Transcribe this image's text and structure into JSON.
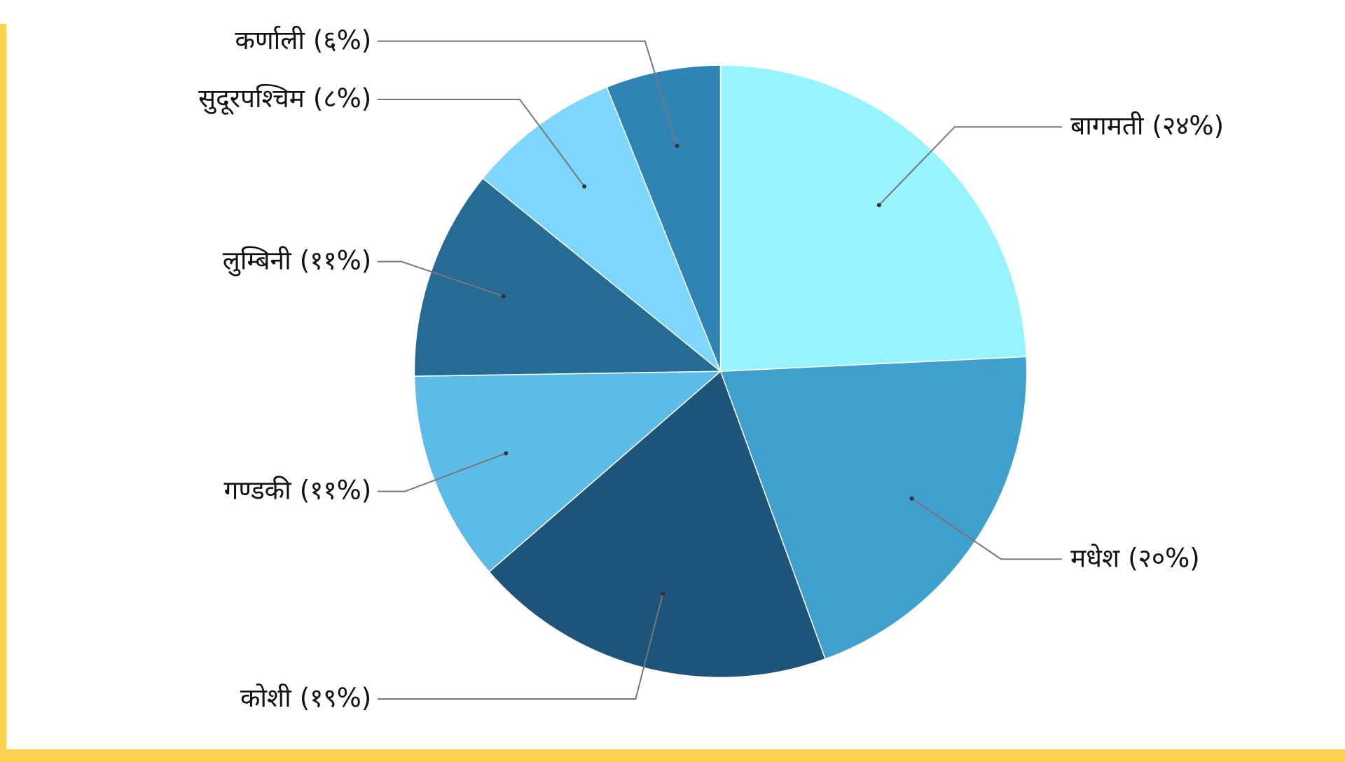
{
  "chart_data": {
    "type": "pie",
    "categories": [
      "बागमती",
      "मधेश",
      "कोशी",
      "गण्डकी",
      "लुम्बिनी",
      "सुदूरपश्चिम",
      "कर्णाली"
    ],
    "values": [
      24,
      20,
      19,
      11,
      11,
      8,
      6
    ],
    "value_labels": [
      "(२४%)",
      "(२०%)",
      "(१९%)",
      "(११%)",
      "(११%)",
      "(८%)",
      "(६%)"
    ],
    "colors": [
      "#97f3fd",
      "#3f9fcd",
      "#1e5479",
      "#5dbbe7",
      "#256b94",
      "#7dd6fd",
      "#2e84b2"
    ]
  }
}
